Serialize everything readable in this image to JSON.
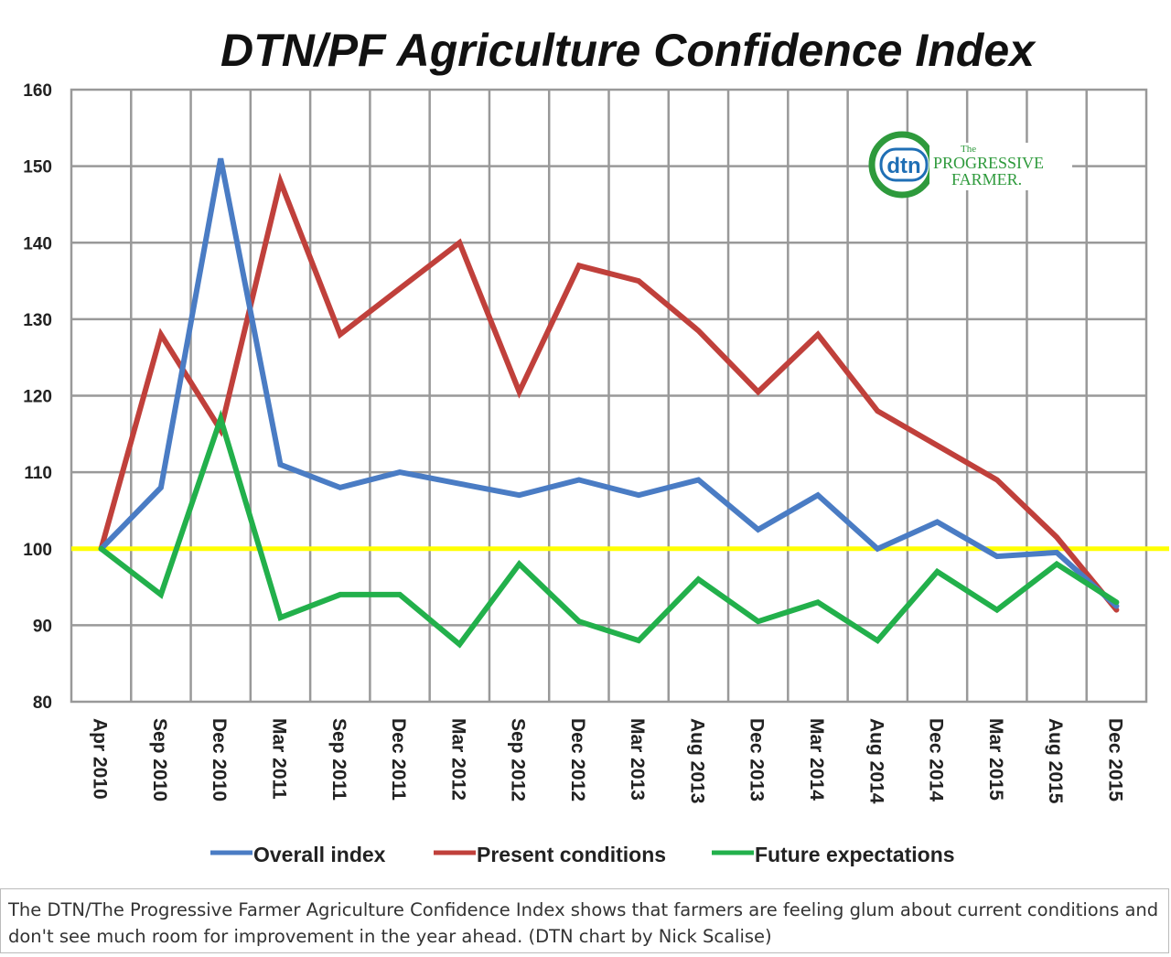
{
  "colors": {
    "overall": "#4a7cc4",
    "present": "#c0403b",
    "future": "#22b04b",
    "baseline": "#ffff00",
    "grid": "#999999",
    "logo_blue": "#1f6fb5",
    "logo_orange": "#f08a1c",
    "logo_green": "#2e9a3c"
  },
  "logo": {
    "dtn": "dtn",
    "the": "The",
    "progressive": "PROGRESSIVE",
    "farmer": "FARMER."
  },
  "chart_data": {
    "type": "line",
    "title": "DTN/PF Agriculture Confidence Index",
    "xlabel": "",
    "ylabel": "",
    "categories": [
      "Apr 2010",
      "Sep 2010",
      "Dec 2010",
      "Mar 2011",
      "Sep 2011",
      "Dec 2011",
      "Mar 2012",
      "Sep 2012",
      "Dec 2012",
      "Mar 2013",
      "Aug 2013",
      "Dec 2013",
      "Mar 2014",
      "Aug 2014",
      "Dec 2014",
      "Mar 2015",
      "Aug 2015",
      "Dec 2015"
    ],
    "ylim": [
      80,
      160
    ],
    "yticks": [
      80,
      90,
      100,
      110,
      120,
      130,
      140,
      150,
      160
    ],
    "grid": true,
    "legend_position": "bottom",
    "reference_line": 100,
    "series": [
      {
        "name": "Overall index",
        "color_key": "overall",
        "values": [
          100,
          108,
          151,
          111,
          108,
          110,
          108.5,
          107,
          109,
          107,
          109,
          102.5,
          107,
          100,
          103.5,
          99,
          99.5,
          92.5
        ]
      },
      {
        "name": "Present conditions",
        "color_key": "present",
        "values": [
          100,
          128,
          115.5,
          148,
          128,
          134,
          140,
          120.5,
          137,
          135,
          128.5,
          120.5,
          128,
          118,
          113.5,
          109,
          101.5,
          92
        ]
      },
      {
        "name": "Future expectations",
        "color_key": "future",
        "values": [
          100,
          94,
          117,
          91,
          94,
          94,
          87.5,
          98,
          90.5,
          88,
          96,
          90.5,
          93,
          88,
          97,
          92,
          98,
          93
        ]
      }
    ]
  },
  "caption": {
    "text": "The DTN/The Progressive Farmer Agriculture Confidence Index shows that farmers are feeling glum about current conditions and don't see much room for improvement in the year ahead. (DTN chart by Nick Scalise)"
  }
}
